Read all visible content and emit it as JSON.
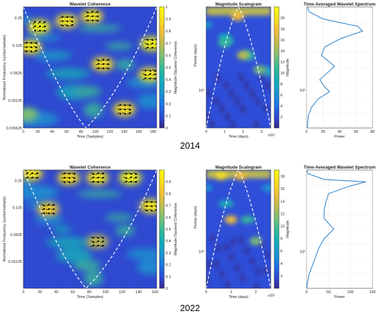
{
  "colors": {
    "parula": [
      "#352a87",
      "#2c4bd9",
      "#1c79e0",
      "#1b98cf",
      "#14afb7",
      "#38bb95",
      "#7fbf73",
      "#c0bb4e",
      "#f1bd39",
      "#f9e01d",
      "#f9fb0e"
    ],
    "line": "#3a87c8",
    "cone": "#ffffff",
    "arrow": "#000000"
  },
  "panels": [
    {
      "year_label": "2014",
      "coherence": {
        "title": "Wavelet Coherence",
        "ylabel": "Normalized Frequency  (cycles/sample)",
        "xlabel": "Time (Samples)",
        "xticks": [
          "0",
          "20",
          "40",
          "60",
          "80",
          "100",
          "120",
          "140",
          "160",
          "180"
        ],
        "yticks": [
          "0.25",
          "0.125",
          "0.0625",
          "0.03125",
          "0.015625"
        ],
        "colorbar_label": "Magnitude-Squared Coherence",
        "colorbar_ticks": [
          "0",
          "0.1",
          "0.2",
          "0.3",
          "0.4",
          "0.5",
          "0.6",
          "0.7",
          "0.8",
          "0.9",
          "1"
        ]
      },
      "scalogram": {
        "title": "Magnitude Scalogram",
        "ylabel": "Period (days)",
        "ytick": "10³",
        "xlabel": "Time (days)",
        "xticks": [
          "0",
          "1",
          "2",
          "3"
        ],
        "xexp": "x10⁴",
        "colorbar_label": "Magnitude",
        "colorbar_ticks": [
          "2",
          "4",
          "6",
          "8",
          "10",
          "12",
          "14",
          "16",
          "18",
          "20"
        ]
      },
      "spectrum": {
        "title": "Time-Averaged Wavelet Spectrum",
        "ytick": "10³",
        "xlabel": "Power",
        "xticks": [
          "0",
          "20",
          "40",
          "60",
          "80"
        ]
      }
    },
    {
      "year_label": "2022",
      "coherence": {
        "title": "Wavelet Coherence",
        "ylabel": "Normalized Frequency  (cycles/sample)",
        "xlabel": "Time (Samples)",
        "xticks": [
          "0",
          "20",
          "40",
          "60",
          "80",
          "100",
          "120",
          "140",
          "160"
        ],
        "yticks": [
          "0.25",
          "0.125",
          "0.0625",
          "0.03125"
        ],
        "colorbar_label": "Magnitude-Squared Coherence",
        "colorbar_ticks": [
          "0",
          "0.1",
          "0.2",
          "0.3",
          "0.4",
          "0.5",
          "0.6",
          "0.7",
          "0.8",
          "0.9"
        ]
      },
      "scalogram": {
        "title": "Magnitude Scalogram",
        "ylabel": "Period (days)",
        "ytick": "10³",
        "xlabel": "Time (days)",
        "xticks": [
          "0",
          "1",
          "2"
        ],
        "xexp": "x10⁴",
        "colorbar_label": "Magnitude",
        "colorbar_ticks": [
          "2",
          "4",
          "6",
          "8",
          "10",
          "12",
          "14",
          "16",
          "18"
        ]
      },
      "spectrum": {
        "title": "Time-Averaged Wavelet Spectrum",
        "ytick": "10³",
        "xlabel": "Power",
        "xticks": [
          "0",
          "50",
          "100",
          "150"
        ]
      }
    }
  ],
  "chart_data": [
    {
      "type": "heatmap",
      "title": "Wavelet Coherence",
      "xlabel": "Time (Samples)",
      "ylabel": "Normalized Frequency  (cycles/sample)",
      "xlim": [
        0,
        185
      ],
      "ylim_log2": [
        -6,
        -1.6
      ],
      "colorbar_range": [
        0,
        1
      ],
      "blobs": [
        {
          "t": 22,
          "f": 0.2,
          "value": 0.95
        },
        {
          "t": 60,
          "f": 0.23,
          "value": 0.9
        },
        {
          "t": 95,
          "f": 0.26,
          "value": 0.9
        },
        {
          "t": 178,
          "f": 0.13,
          "value": 0.95
        },
        {
          "t": 10,
          "f": 0.12,
          "value": 0.9
        },
        {
          "t": 110,
          "f": 0.078,
          "value": 0.85
        },
        {
          "t": 175,
          "f": 0.06,
          "value": 0.9
        },
        {
          "t": 140,
          "f": 0.025,
          "value": 0.85
        },
        {
          "t": 5,
          "f": 0.022,
          "value": 0.55
        }
      ]
    },
    {
      "type": "heatmap",
      "title": "Magnitude Scalogram",
      "xlabel": "Time (days)",
      "ylabel": "Period (days)",
      "xlim": [
        0,
        3.5
      ],
      "colorbar_range": [
        0,
        22
      ],
      "blobs": [
        {
          "t": 1.7,
          "p": 0.08,
          "value": 17
        },
        {
          "t": 2.0,
          "p": 0.4,
          "value": 16
        },
        {
          "t": 2.9,
          "p": 0.52,
          "value": 14
        },
        {
          "t": 1.0,
          "p": 0.3,
          "value": 12
        }
      ]
    },
    {
      "type": "line",
      "title": "Time-Averaged Wavelet Spectrum",
      "xlabel": "Power",
      "xlim": [
        0,
        80
      ],
      "points": [
        [
          1,
          0
        ],
        [
          3,
          0.04
        ],
        [
          20,
          0.1
        ],
        [
          62,
          0.16
        ],
        [
          68,
          0.2
        ],
        [
          42,
          0.26
        ],
        [
          22,
          0.33
        ],
        [
          18,
          0.4
        ],
        [
          34,
          0.49
        ],
        [
          26,
          0.54
        ],
        [
          16,
          0.6
        ],
        [
          22,
          0.66
        ],
        [
          28,
          0.7
        ],
        [
          14,
          0.76
        ],
        [
          6,
          0.83
        ],
        [
          2,
          0.9
        ],
        [
          1,
          1
        ]
      ]
    },
    {
      "type": "heatmap",
      "title": "Wavelet Coherence",
      "xlabel": "Time (Samples)",
      "ylabel": "Normalized Frequency  (cycles/sample)",
      "xlim": [
        0,
        162
      ],
      "ylim_log2": [
        -6,
        -1.6
      ],
      "colorbar_range": [
        0,
        1
      ],
      "blobs": [
        {
          "t": 10,
          "f": 0.3,
          "value": 0.9
        },
        {
          "t": 55,
          "f": 0.27,
          "value": 0.85
        },
        {
          "t": 90,
          "f": 0.27,
          "value": 0.9
        },
        {
          "t": 130,
          "f": 0.27,
          "value": 0.95
        },
        {
          "t": 155,
          "f": 0.13,
          "value": 0.9
        },
        {
          "t": 30,
          "f": 0.12,
          "value": 0.8
        },
        {
          "t": 90,
          "f": 0.052,
          "value": 0.65
        }
      ]
    },
    {
      "type": "heatmap",
      "title": "Magnitude Scalogram",
      "xlabel": "Time (days)",
      "ylabel": "Period (days)",
      "xlim": [
        0,
        2.6
      ],
      "colorbar_range": [
        0,
        19
      ],
      "blobs": [
        {
          "t": 0.6,
          "p": 0.05,
          "value": 17
        },
        {
          "t": 1.4,
          "p": 0.05,
          "value": 16
        },
        {
          "t": 1.0,
          "p": 0.42,
          "value": 15
        },
        {
          "t": 2.0,
          "p": 0.6,
          "value": 12
        }
      ]
    },
    {
      "type": "line",
      "title": "Time-Averaged Wavelet Spectrum",
      "xlabel": "Power",
      "xlim": [
        0,
        150
      ],
      "points": [
        [
          1,
          0
        ],
        [
          3,
          0.03
        ],
        [
          40,
          0.08
        ],
        [
          135,
          0.1
        ],
        [
          95,
          0.14
        ],
        [
          50,
          0.2
        ],
        [
          44,
          0.27
        ],
        [
          40,
          0.34
        ],
        [
          40,
          0.41
        ],
        [
          62,
          0.5
        ],
        [
          40,
          0.58
        ],
        [
          28,
          0.66
        ],
        [
          22,
          0.72
        ],
        [
          14,
          0.8
        ],
        [
          6,
          0.88
        ],
        [
          2,
          0.95
        ],
        [
          1,
          1
        ]
      ]
    }
  ]
}
